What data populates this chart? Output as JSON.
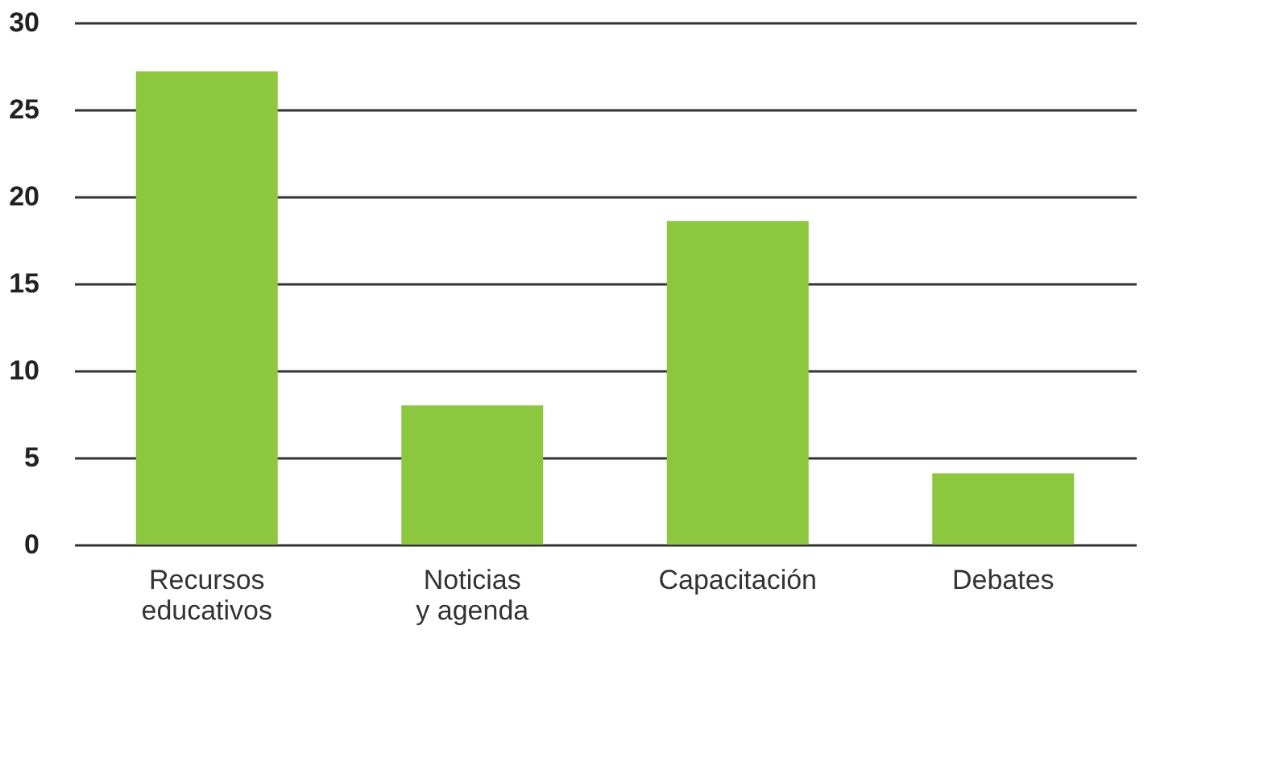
{
  "chart_data": {
    "type": "bar",
    "categories": [
      "Recursos educativos",
      "Noticias y agenda",
      "Capacitación",
      "Debates"
    ],
    "values": [
      27.2,
      8,
      18.6,
      4.1
    ],
    "color": "#8dc63f",
    "ylim": [
      0,
      30
    ],
    "yticks": [
      0,
      5,
      10,
      15,
      20,
      25,
      30
    ],
    "grid": "y"
  }
}
